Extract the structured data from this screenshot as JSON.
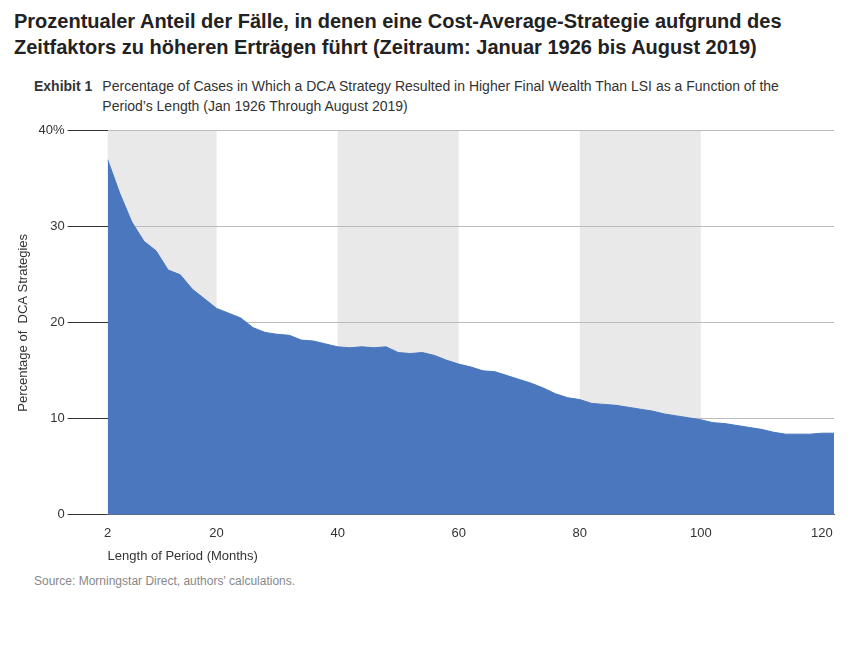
{
  "chart_data": {
    "type": "area",
    "title": "Prozentualer Anteil der Fälle, in denen eine Cost-Average-Strategie aufgrund des Zeitfaktors zu höheren Erträgen führt (Zeitraum: Januar 1926 bis  August 2019)",
    "exhibit": "Exhibit 1",
    "subtitle": "Percentage of Cases in Which a DCA Strategy Resulted in Higher Final Wealth Than LSI as a Function of the Period’s Length (Jan 1926 Through August 2019)",
    "x_label": "Length of Period (Months)",
    "y_label": "Percentage of  DCA Strategies",
    "source": "Source: Morningstar Direct, authors' calculations.",
    "x": [
      2,
      4,
      6,
      8,
      10,
      12,
      14,
      16,
      18,
      20,
      22,
      24,
      26,
      28,
      30,
      32,
      34,
      36,
      38,
      40,
      42,
      44,
      46,
      48,
      50,
      52,
      54,
      56,
      58,
      60,
      62,
      64,
      66,
      68,
      70,
      72,
      74,
      76,
      78,
      80,
      82,
      84,
      86,
      88,
      90,
      92,
      94,
      96,
      98,
      100,
      102,
      104,
      106,
      108,
      110,
      112,
      114,
      116,
      118,
      120,
      122
    ],
    "values": [
      37,
      33.5,
      30.5,
      28.5,
      27.5,
      25.5,
      25,
      23.5,
      22.5,
      21.5,
      21,
      20.5,
      19.5,
      19,
      18.8,
      18.7,
      18.2,
      18.1,
      17.8,
      17.5,
      17.4,
      17.5,
      17.4,
      17.5,
      16.9,
      16.8,
      16.9,
      16.6,
      16.1,
      15.7,
      15.4,
      15,
      14.9,
      14.5,
      14.1,
      13.7,
      13.2,
      12.6,
      12.2,
      12,
      11.6,
      11.5,
      11.4,
      11.2,
      11,
      10.8,
      10.5,
      10.3,
      10.1,
      9.9,
      9.6,
      9.5,
      9.3,
      9.1,
      8.9,
      8.6,
      8.4,
      8.4,
      8.4,
      8.5,
      8.5
    ],
    "color": "#4a77bd",
    "xlim": [
      2,
      122
    ],
    "xticks": [
      2,
      20,
      40,
      60,
      80,
      100,
      120
    ],
    "ylim": [
      0,
      40
    ],
    "yticks": [
      0,
      10,
      20,
      30,
      {
        "value": 40,
        "label": "40%"
      }
    ],
    "grid": true
  }
}
